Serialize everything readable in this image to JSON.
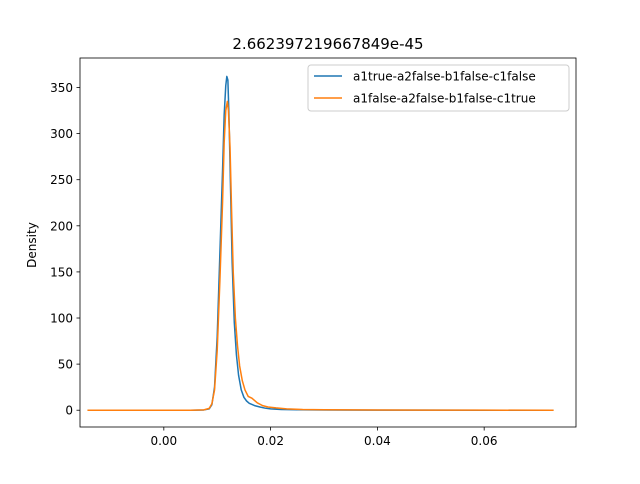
{
  "chart_data": {
    "type": "line",
    "title": "2.662397219667849e-45",
    "xlabel": "",
    "ylabel": "Density",
    "xlim": [
      -0.0157,
      0.0772
    ],
    "ylim": [
      -18.2,
      382.0
    ],
    "x_ticks": [
      0.0,
      0.02,
      0.04,
      0.06
    ],
    "x_tick_labels": [
      "0.00",
      "0.02",
      "0.04",
      "0.06"
    ],
    "y_ticks": [
      0,
      50,
      100,
      150,
      200,
      250,
      300,
      350
    ],
    "y_tick_labels": [
      "0",
      "50",
      "100",
      "150",
      "200",
      "250",
      "300",
      "350"
    ],
    "grid": false,
    "legend_position": "top-right",
    "series": [
      {
        "name": "a1true-a2false-b1false-c1false",
        "color": "#1f77b4",
        "x": [
          -0.0143,
          -0.005,
          0.0,
          0.005,
          0.0075,
          0.0085,
          0.009,
          0.0095,
          0.01,
          0.0105,
          0.011,
          0.0113,
          0.0116,
          0.0118,
          0.012,
          0.0122,
          0.0125,
          0.0128,
          0.0132,
          0.0136,
          0.014,
          0.0145,
          0.015,
          0.0155,
          0.016,
          0.017,
          0.018,
          0.019,
          0.02,
          0.022,
          0.025,
          0.03,
          0.04,
          0.05,
          0.06,
          0.073
        ],
        "y": [
          0,
          0,
          0,
          0,
          0.3,
          1.5,
          6,
          25,
          80,
          170,
          260,
          320,
          352,
          362,
          358,
          320,
          240,
          160,
          95,
          60,
          38,
          22,
          14,
          10,
          7.5,
          5,
          3.5,
          2.2,
          1.5,
          0.8,
          0.5,
          0.3,
          0.1,
          0.05,
          0.02,
          0
        ]
      },
      {
        "name": "a1false-a2false-b1false-c1true",
        "color": "#ff7f0e",
        "x": [
          -0.0143,
          -0.005,
          0.0,
          0.005,
          0.0075,
          0.0085,
          0.009,
          0.0095,
          0.01,
          0.0105,
          0.011,
          0.0113,
          0.0116,
          0.0119,
          0.0121,
          0.0124,
          0.0127,
          0.013,
          0.0134,
          0.0138,
          0.0142,
          0.0147,
          0.0152,
          0.0158,
          0.0165,
          0.0175,
          0.0185,
          0.0195,
          0.021,
          0.023,
          0.026,
          0.03,
          0.04,
          0.05,
          0.06,
          0.073
        ],
        "y": [
          0,
          0,
          0,
          0,
          0.4,
          2,
          7,
          22,
          65,
          140,
          225,
          290,
          325,
          335,
          325,
          285,
          215,
          150,
          100,
          70,
          48,
          32,
          22,
          15,
          13,
          8,
          5,
          3.5,
          2.5,
          1.5,
          0.8,
          0.5,
          0.2,
          0.1,
          0.05,
          0
        ]
      }
    ]
  }
}
